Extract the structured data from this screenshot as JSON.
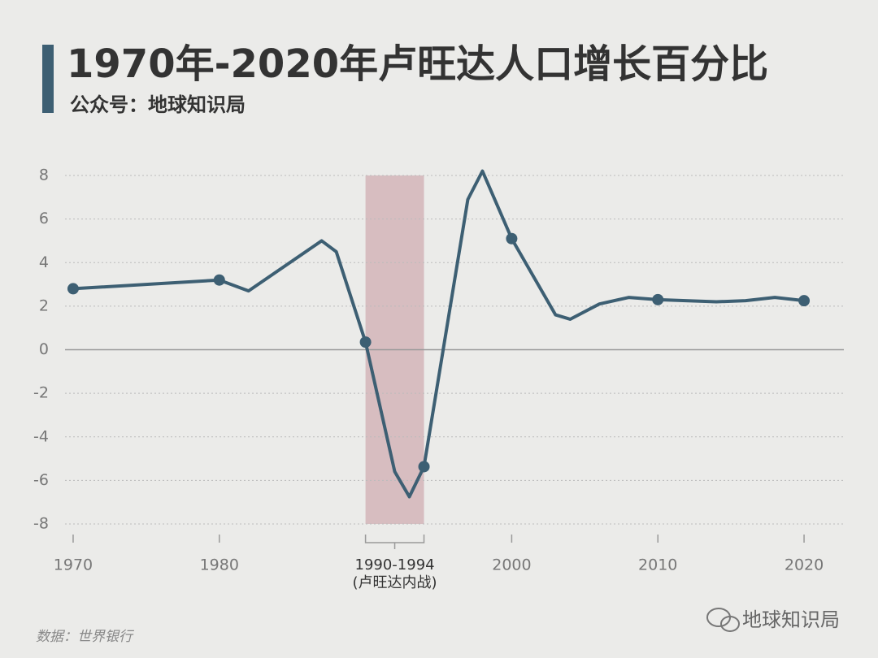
{
  "chart_data": {
    "type": "line",
    "title": "1970年-2020年卢旺达人口增长百分比",
    "subtitle": "公众号：地球知识局",
    "source": "数据：世界银行",
    "brand": "地球知识局",
    "x": [
      1970,
      1980,
      1982,
      1987,
      1988,
      1990,
      1992,
      1993,
      1994,
      1997,
      1998,
      2000,
      2003,
      2004,
      2006,
      2008,
      2010,
      2014,
      2016,
      2018,
      2020
    ],
    "series": [
      {
        "name": "卢旺达人口增长百分比",
        "color": "#3d5f73",
        "values": [
          2.8,
          3.2,
          2.7,
          5.0,
          4.5,
          0.35,
          -5.6,
          -6.75,
          -5.37,
          6.9,
          8.2,
          5.1,
          1.6,
          1.4,
          2.1,
          2.4,
          2.3,
          2.2,
          2.25,
          2.4,
          2.25
        ]
      }
    ],
    "highlight_x": [
      1970,
      1980,
      1990,
      1994,
      2000,
      2010,
      2020
    ],
    "shade": {
      "from": 1990,
      "to": 1994,
      "label": "1990-1994",
      "note": "(卢旺达内战)",
      "color": "#d4b5b8"
    },
    "xlim": [
      1968,
      2023
    ],
    "xticks": [
      1970,
      1980,
      2000,
      2010,
      2020
    ],
    "ylim": [
      -8,
      8
    ],
    "yticks": [
      -8,
      -6,
      -4,
      -2,
      0,
      2,
      4,
      6,
      8
    ],
    "grid": true
  }
}
